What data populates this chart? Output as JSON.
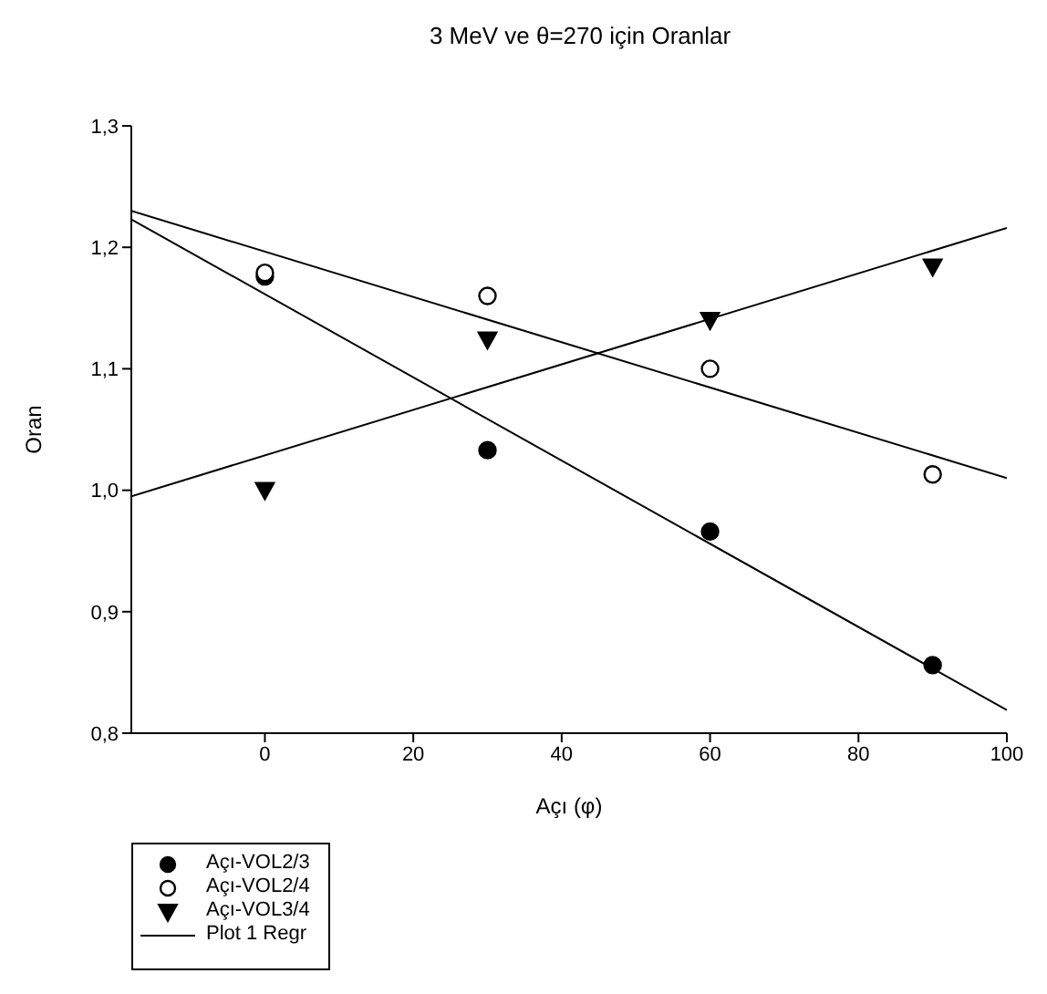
{
  "chart_data": {
    "type": "scatter",
    "title": "3 MeV ve θ=270 için Oranlar",
    "xlabel": "Açı (φ)",
    "ylabel": "Oran",
    "xlim": [
      -18,
      100
    ],
    "xticks": [
      0,
      20,
      40,
      60,
      80,
      100
    ],
    "ylim": [
      0.8,
      1.3
    ],
    "yticks": [
      {
        "value": 0.8,
        "label": "0,8"
      },
      {
        "value": 0.9,
        "label": "0,9"
      },
      {
        "value": 1.0,
        "label": "1,0"
      },
      {
        "value": 1.1,
        "label": "1,1"
      },
      {
        "value": 1.2,
        "label": "1,2"
      },
      {
        "value": 1.3,
        "label": "1,3"
      }
    ],
    "grid": false,
    "legend": "bottom left",
    "series": [
      {
        "name": "Açı-VOL2/3",
        "marker": "circle",
        "color": "#000000",
        "x": [
          0,
          30,
          60,
          90
        ],
        "values": [
          1.176,
          1.033,
          0.966,
          0.856
        ]
      },
      {
        "name": "Açı-VOL2/4",
        "marker": "circle",
        "color": "#ffffff",
        "x": [
          0,
          30,
          60,
          90
        ],
        "values": [
          1.179,
          1.16,
          1.1,
          1.013
        ]
      },
      {
        "name": "Açı-VOL3/4",
        "marker": "triangle",
        "color": "#000000",
        "x": [
          0,
          30,
          60,
          90
        ],
        "values": [
          1.0,
          1.124,
          1.14,
          1.184
        ]
      },
      {
        "name": "Plot 1 Regr",
        "type": "line",
        "marker": "none",
        "color": "#000000",
        "x": [
          -18,
          100
        ],
        "values": [
          1.223,
          0.819
        ]
      },
      {
        "type": "line",
        "marker": "none",
        "color": "#000000",
        "x": [
          -18,
          100
        ],
        "values": [
          1.23,
          1.01
        ]
      },
      {
        "type": "line",
        "marker": "none",
        "color": "#000000",
        "x": [
          -18,
          100
        ],
        "values": [
          0.995,
          1.216
        ]
      }
    ]
  }
}
